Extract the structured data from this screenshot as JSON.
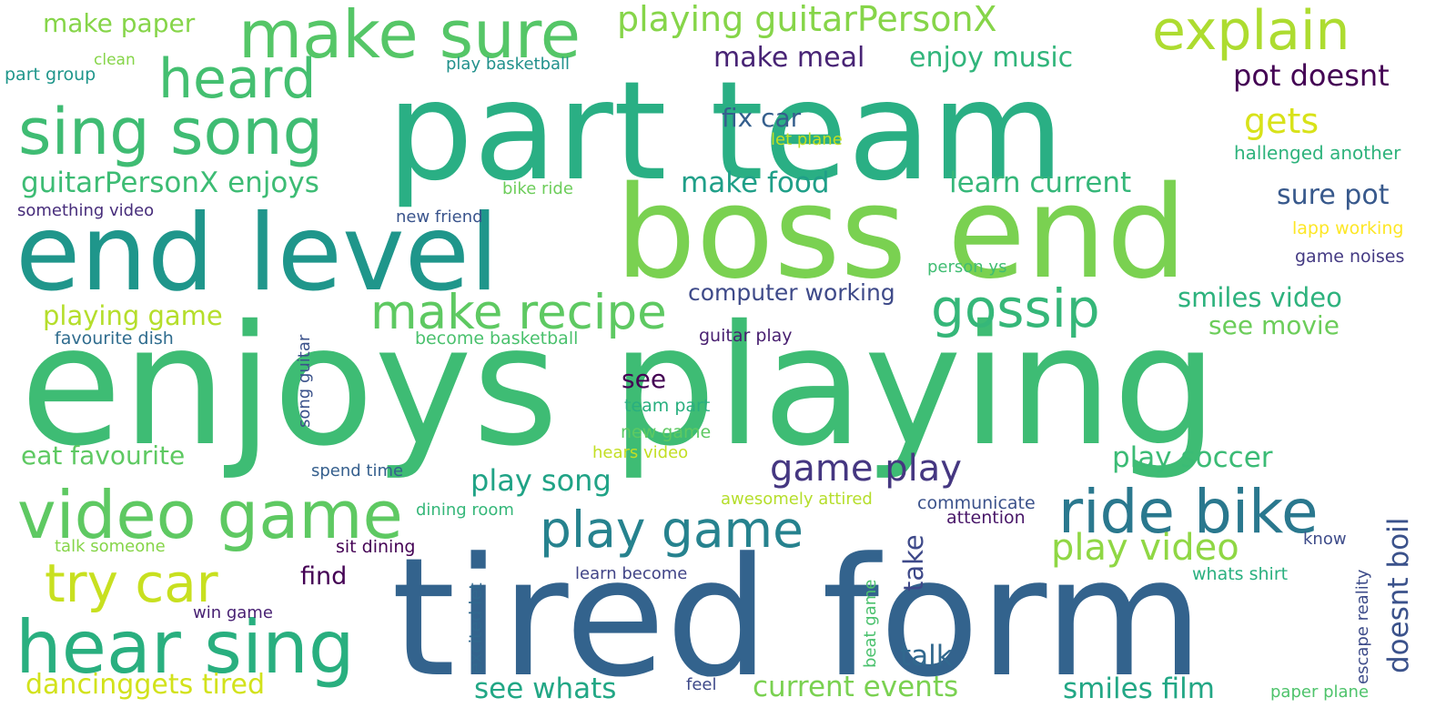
{
  "words": [
    {
      "text": "part team",
      "color": "#2aaf84"
    },
    {
      "text": "enjoys playing",
      "color": "#3ebc74"
    },
    {
      "text": "tired form",
      "color": "#33638d"
    },
    {
      "text": "boss end",
      "color": "#7ad151"
    },
    {
      "text": "end level",
      "color": "#1f968b"
    },
    {
      "text": "make sure",
      "color": "#55c667"
    },
    {
      "text": "sing song",
      "color": "#3fbc73"
    },
    {
      "text": "video game",
      "color": "#5ec962"
    },
    {
      "text": "hear sing",
      "color": "#29af7f"
    },
    {
      "text": "explain",
      "color": "#addc30"
    },
    {
      "text": "heard",
      "color": "#44bf70"
    },
    {
      "text": "ride bike",
      "color": "#2a788e"
    },
    {
      "text": "play game",
      "color": "#26828e"
    },
    {
      "text": "try car",
      "color": "#c8e020"
    },
    {
      "text": "make recipe",
      "color": "#5ec962"
    },
    {
      "text": "gossip",
      "color": "#35b779"
    },
    {
      "text": "game play",
      "color": "#453781"
    },
    {
      "text": "playing guitarPersonX",
      "color": "#86d549"
    },
    {
      "text": "play video",
      "color": "#8fd744"
    },
    {
      "text": "make paper",
      "color": "#86d549"
    },
    {
      "text": "guitarPersonX enjoys",
      "color": "#3dbc74"
    },
    {
      "text": "playing game",
      "color": "#b5de2b"
    },
    {
      "text": "eat favourite",
      "color": "#5ec962"
    },
    {
      "text": "dancinggets tired",
      "color": "#d2e21b"
    },
    {
      "text": "play song",
      "color": "#20a386"
    },
    {
      "text": "see whats",
      "color": "#22a785"
    },
    {
      "text": "current events",
      "color": "#7ad151"
    },
    {
      "text": "smiles film",
      "color": "#22a785"
    },
    {
      "text": "play soccer",
      "color": "#3bbb75"
    },
    {
      "text": "smiles video",
      "color": "#2db27d"
    },
    {
      "text": "see movie",
      "color": "#6ccd5a"
    },
    {
      "text": "make food",
      "color": "#1f9f88"
    },
    {
      "text": "make meal",
      "color": "#482475"
    },
    {
      "text": "enjoy music",
      "color": "#31b57b"
    },
    {
      "text": "learn current",
      "color": "#35b779"
    },
    {
      "text": "pot doesnt",
      "color": "#440154"
    },
    {
      "text": "gets",
      "color": "#d8e219"
    },
    {
      "text": "sure pot",
      "color": "#38598c"
    },
    {
      "text": "fix car",
      "color": "#355f8d"
    },
    {
      "text": "computer working",
      "color": "#3e4a89"
    },
    {
      "text": "see",
      "color": "#440154"
    },
    {
      "text": "take",
      "color": "#3e4989"
    },
    {
      "text": "talk",
      "color": "#31688e"
    },
    {
      "text": "find",
      "color": "#440154"
    },
    {
      "text": "doesnt boil",
      "color": "#3b528b"
    },
    {
      "text": "hallenged another",
      "color": "#2eb37c"
    },
    {
      "text": "let plane",
      "color": "#c2df23"
    },
    {
      "text": "bike ride",
      "color": "#6ccd5a"
    },
    {
      "text": "new friend",
      "color": "#3a548c"
    },
    {
      "text": "something video",
      "color": "#472d7b"
    },
    {
      "text": "lapp working",
      "color": "#fde725"
    },
    {
      "text": "game noises",
      "color": "#443a83"
    },
    {
      "text": "person ys",
      "color": "#40bd72"
    },
    {
      "text": "favourite dish",
      "color": "#2f6c8e"
    },
    {
      "text": "become basketball",
      "color": "#4ac16d"
    },
    {
      "text": "guitar play",
      "color": "#481f70"
    },
    {
      "text": "team part",
      "color": "#29af7f"
    },
    {
      "text": "new game",
      "color": "#5ec962"
    },
    {
      "text": "hears video",
      "color": "#c2df23"
    },
    {
      "text": "spend time",
      "color": "#355f8d"
    },
    {
      "text": "awesomely attired",
      "color": "#b5de2b"
    },
    {
      "text": "communicate",
      "color": "#3b528b"
    },
    {
      "text": "attention",
      "color": "#481668"
    },
    {
      "text": "dining room",
      "color": "#35b779"
    },
    {
      "text": "sit dining",
      "color": "#440154"
    },
    {
      "text": "talk someone",
      "color": "#86d549"
    },
    {
      "text": "learn become",
      "color": "#414487"
    },
    {
      "text": "win game",
      "color": "#482173"
    },
    {
      "text": "whats shirt",
      "color": "#2ab07f"
    },
    {
      "text": "know",
      "color": "#3e4c8a"
    },
    {
      "text": "feel",
      "color": "#3e4989"
    },
    {
      "text": "paper plane",
      "color": "#4ec36b"
    },
    {
      "text": "make paper",
      "color": "#86d549"
    },
    {
      "text": "clean",
      "color": "#86d549"
    },
    {
      "text": "part group",
      "color": "#1f968b"
    },
    {
      "text": "play basketball",
      "color": "#21918c"
    },
    {
      "text": "song guitar",
      "color": "#3b528b"
    },
    {
      "text": "excited let",
      "color": "#31688e"
    },
    {
      "text": "beat game",
      "color": "#4ac16d"
    },
    {
      "text": "escape reality",
      "color": "#3e4c8a"
    }
  ]
}
